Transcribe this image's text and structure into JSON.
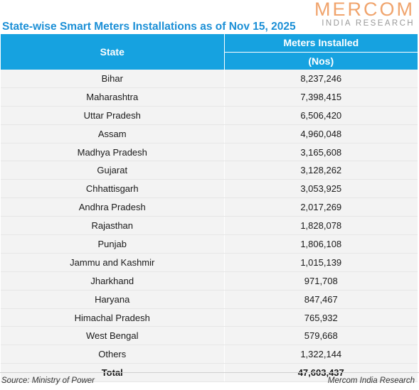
{
  "logo": {
    "main": "MERCOM",
    "sub": "INDIA RESEARCH"
  },
  "title": "State-wise Smart Meters Installations as of Nov 15, 2025",
  "chart_data": {
    "type": "table",
    "title": "State-wise Smart Meters Installations as of Nov 15, 2025",
    "columns": {
      "state": "State",
      "value": "Meters Installed",
      "unit": "(Nos)"
    },
    "rows": [
      {
        "state": "Bihar",
        "value": "8,237,246"
      },
      {
        "state": "Maharashtra",
        "value": "7,398,415"
      },
      {
        "state": "Uttar Pradesh",
        "value": "6,506,420"
      },
      {
        "state": "Assam",
        "value": "4,960,048"
      },
      {
        "state": "Madhya Pradesh",
        "value": "3,165,608"
      },
      {
        "state": "Gujarat",
        "value": "3,128,262"
      },
      {
        "state": "Chhattisgarh",
        "value": "3,053,925"
      },
      {
        "state": "Andhra Pradesh",
        "value": "2,017,269"
      },
      {
        "state": "Rajasthan",
        "value": "1,828,078"
      },
      {
        "state": "Punjab",
        "value": "1,806,108"
      },
      {
        "state": "Jammu and Kashmir",
        "value": "1,015,139"
      },
      {
        "state": "Jharkhand",
        "value": "971,708"
      },
      {
        "state": "Haryana",
        "value": "847,467"
      },
      {
        "state": "Himachal Pradesh",
        "value": "765,932"
      },
      {
        "state": "West Bengal",
        "value": "579,668"
      },
      {
        "state": "Others",
        "value": "1,322,144"
      }
    ],
    "total": {
      "label": "Total",
      "value": "47,603,437"
    }
  },
  "footer": {
    "source": "Source: Ministry of Power",
    "credit": "Mercom India Research"
  },
  "colors": {
    "header_bg": "#16a2e0",
    "title": "#1b8fd6",
    "logo": "#f0a46d",
    "row_bg": "#f3f3f3"
  }
}
